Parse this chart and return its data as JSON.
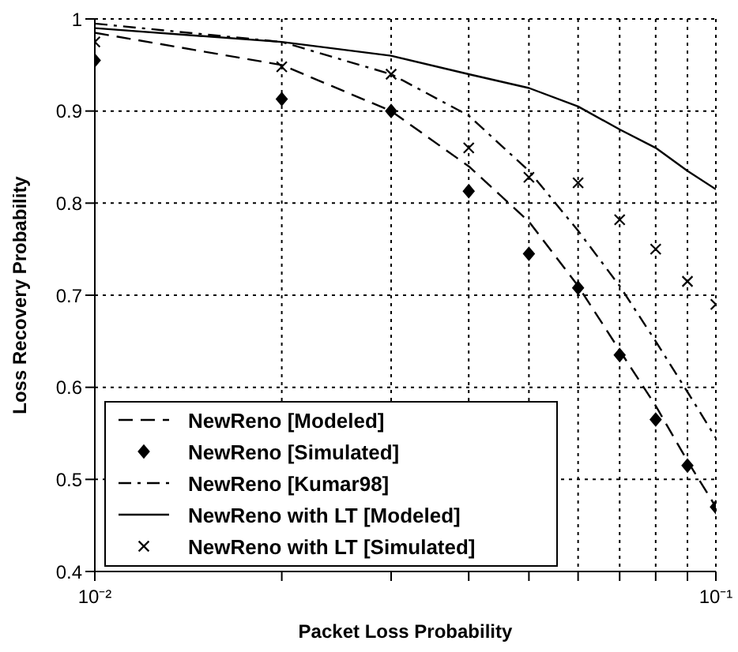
{
  "chart_data": {
    "type": "line",
    "xlabel": "Packet Loss Probability",
    "ylabel": "Loss Recovery Probability",
    "log": "x",
    "grid": true,
    "legend": "bottom left",
    "xlim": [
      0.01,
      0.1
    ],
    "xticks": [
      {
        "value": 0.01,
        "label": "10⁻²"
      },
      {
        "value": 0.02,
        "label": null
      },
      {
        "value": 0.03,
        "label": null
      },
      {
        "value": 0.04,
        "label": null
      },
      {
        "value": 0.05,
        "label": null
      },
      {
        "value": 0.06,
        "label": null
      },
      {
        "value": 0.07,
        "label": null
      },
      {
        "value": 0.08,
        "label": null
      },
      {
        "value": 0.09,
        "label": null
      },
      {
        "value": 0.1,
        "label": "10⁻¹"
      }
    ],
    "ylim": [
      0.4,
      1
    ],
    "yticks": [
      0.4,
      0.5,
      0.6,
      0.7,
      0.8,
      0.9,
      1
    ],
    "x": [
      0.01,
      0.02,
      0.03,
      0.04,
      0.05,
      0.06,
      0.07,
      0.08,
      0.09,
      0.1
    ],
    "series": [
      {
        "name": "NewReno [Modeled]",
        "color": "#000000",
        "line_style": "dashed",
        "marker": "none",
        "values": [
          0.985,
          0.95,
          0.9,
          0.84,
          0.78,
          0.71,
          0.64,
          0.58,
          0.52,
          0.47
        ]
      },
      {
        "name": "NewReno [Simulated]",
        "type": "scatter",
        "color": "#000000",
        "marker": "diamond",
        "values": [
          0.955,
          0.913,
          0.9,
          0.813,
          0.745,
          0.708,
          0.635,
          0.565,
          0.515,
          0.47
        ]
      },
      {
        "name": "NewReno [Kumar98]",
        "color": "#000000",
        "line_style": "dashdot",
        "marker": "none",
        "values": [
          0.995,
          0.975,
          0.94,
          0.895,
          0.835,
          0.77,
          0.71,
          0.65,
          0.595,
          0.545
        ]
      },
      {
        "name": "NewReno with LT [Modeled]",
        "color": "#000000",
        "line_style": "solid",
        "marker": "none",
        "values": [
          0.99,
          0.975,
          0.96,
          0.94,
          0.925,
          0.905,
          0.88,
          0.86,
          0.835,
          0.815
        ]
      },
      {
        "name": "NewReno with LT [Simulated]",
        "type": "scatter",
        "color": "#000000",
        "marker": "cross",
        "values": [
          0.975,
          0.948,
          0.94,
          0.86,
          0.828,
          0.822,
          0.782,
          0.75,
          0.715,
          0.69
        ]
      }
    ]
  }
}
